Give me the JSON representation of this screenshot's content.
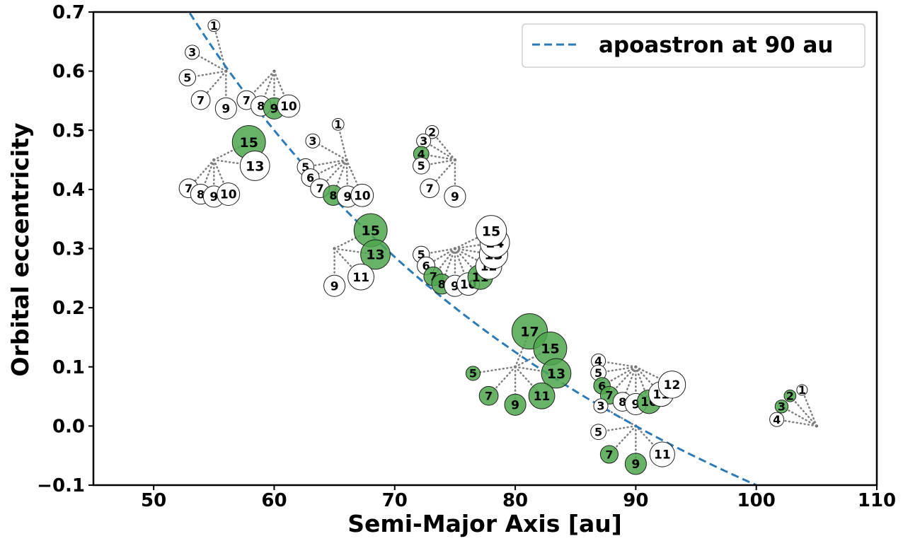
{
  "chart_data": {
    "type": "scatter",
    "xlabel": "Semi-Major Axis [au]",
    "ylabel": "Orbital eccentricity",
    "xlim": [
      45,
      110
    ],
    "ylim": [
      -0.1,
      0.7
    ],
    "xticks": [
      "50",
      "60",
      "70",
      "80",
      "90",
      "100",
      "110"
    ],
    "yticks": [
      "−0.1",
      "0.0",
      "0.1",
      "0.2",
      "0.3",
      "0.4",
      "0.5",
      "0.6",
      "0.7"
    ],
    "grid": false,
    "legend": {
      "position": "top-right",
      "entries": [
        "apoastron at 90 au"
      ]
    },
    "curve": {
      "name": "apoastron at 90 au",
      "apoastron_au": 90,
      "x_range": [
        53,
        100
      ],
      "style": "dashed",
      "color": "#2c7bb6"
    },
    "colors": {
      "filled": "#4da64d",
      "filled_alpha": 0.85,
      "open": "#ffffff",
      "connector": "#808080"
    },
    "systems": [
      {
        "center": [
          56,
          0.6
        ],
        "points": [
          {
            "label": "1",
            "x": 55,
            "y": 0.677,
            "r": 0.01,
            "filled": false
          },
          {
            "label": "3",
            "x": 53.2,
            "y": 0.632,
            "r": 0.012,
            "filled": false
          },
          {
            "label": "5",
            "x": 52.8,
            "y": 0.589,
            "r": 0.014,
            "filled": false
          },
          {
            "label": "7",
            "x": 53.9,
            "y": 0.551,
            "r": 0.016,
            "filled": false
          },
          {
            "label": "9",
            "x": 56,
            "y": 0.537,
            "r": 0.018,
            "filled": false
          }
        ]
      },
      {
        "center": [
          60,
          0.6
        ],
        "points": [
          {
            "label": "7",
            "x": 57.7,
            "y": 0.551,
            "r": 0.016,
            "filled": false
          },
          {
            "label": "8",
            "x": 58.9,
            "y": 0.541,
            "r": 0.017,
            "filled": false
          },
          {
            "label": "9",
            "x": 60,
            "y": 0.537,
            "r": 0.018,
            "filled": true
          },
          {
            "label": "10",
            "x": 61.2,
            "y": 0.541,
            "r": 0.019,
            "filled": false
          }
        ]
      },
      {
        "center": [
          55,
          0.45
        ],
        "points": [
          {
            "label": "15",
            "x": 57.9,
            "y": 0.48,
            "r": 0.028,
            "filled": true
          },
          {
            "label": "13",
            "x": 58.4,
            "y": 0.44,
            "r": 0.025,
            "filled": false
          },
          {
            "label": "7",
            "x": 52.9,
            "y": 0.402,
            "r": 0.016,
            "filled": false
          },
          {
            "label": "8",
            "x": 53.9,
            "y": 0.392,
            "r": 0.017,
            "filled": false
          },
          {
            "label": "9",
            "x": 55,
            "y": 0.388,
            "r": 0.018,
            "filled": false
          },
          {
            "label": "10",
            "x": 56.2,
            "y": 0.392,
            "r": 0.019,
            "filled": false
          }
        ]
      },
      {
        "center": [
          66,
          0.45
        ],
        "points": [
          {
            "label": "1",
            "x": 65.3,
            "y": 0.51,
            "r": 0.01,
            "filled": false
          },
          {
            "label": "3",
            "x": 63.2,
            "y": 0.482,
            "r": 0.012,
            "filled": false
          },
          {
            "label": "5",
            "x": 62.6,
            "y": 0.438,
            "r": 0.014,
            "filled": false
          },
          {
            "label": "6",
            "x": 63,
            "y": 0.42,
            "r": 0.015,
            "filled": false
          },
          {
            "label": "7",
            "x": 63.8,
            "y": 0.402,
            "r": 0.016,
            "filled": false
          },
          {
            "label": "8",
            "x": 64.9,
            "y": 0.39,
            "r": 0.017,
            "filled": true
          },
          {
            "label": "9",
            "x": 66.1,
            "y": 0.388,
            "r": 0.018,
            "filled": false
          },
          {
            "label": "10",
            "x": 67.3,
            "y": 0.39,
            "r": 0.019,
            "filled": false
          }
        ]
      },
      {
        "center": [
          75,
          0.45
        ],
        "points": [
          {
            "label": "2",
            "x": 73.1,
            "y": 0.497,
            "r": 0.011,
            "filled": false
          },
          {
            "label": "3",
            "x": 72.4,
            "y": 0.482,
            "r": 0.012,
            "filled": false
          },
          {
            "label": "4",
            "x": 72.2,
            "y": 0.46,
            "r": 0.013,
            "filled": true
          },
          {
            "label": "5",
            "x": 72.2,
            "y": 0.44,
            "r": 0.014,
            "filled": false
          },
          {
            "label": "7",
            "x": 72.9,
            "y": 0.402,
            "r": 0.016,
            "filled": false
          },
          {
            "label": "9",
            "x": 75,
            "y": 0.388,
            "r": 0.018,
            "filled": false
          }
        ]
      },
      {
        "center": [
          65,
          0.3
        ],
        "points": [
          {
            "label": "15",
            "x": 68,
            "y": 0.331,
            "r": 0.028,
            "filled": true
          },
          {
            "label": "13",
            "x": 68.4,
            "y": 0.29,
            "r": 0.025,
            "filled": true
          },
          {
            "label": "11",
            "x": 67.2,
            "y": 0.252,
            "r": 0.022,
            "filled": false
          },
          {
            "label": "9",
            "x": 65,
            "y": 0.237,
            "r": 0.018,
            "filled": false
          }
        ]
      },
      {
        "center": [
          75,
          0.3
        ],
        "points": [
          {
            "label": "5",
            "x": 72.2,
            "y": 0.29,
            "r": 0.014,
            "filled": false
          },
          {
            "label": "6",
            "x": 72.6,
            "y": 0.271,
            "r": 0.015,
            "filled": false
          },
          {
            "label": "7",
            "x": 73.2,
            "y": 0.253,
            "r": 0.016,
            "filled": true
          },
          {
            "label": "8",
            "x": 73.9,
            "y": 0.24,
            "r": 0.017,
            "filled": true
          },
          {
            "label": "9",
            "x": 75,
            "y": 0.237,
            "r": 0.018,
            "filled": false
          },
          {
            "label": "10",
            "x": 76.1,
            "y": 0.24,
            "r": 0.019,
            "filled": false
          },
          {
            "label": "11",
            "x": 77.1,
            "y": 0.252,
            "r": 0.021,
            "filled": true
          },
          {
            "label": "12",
            "x": 77.8,
            "y": 0.27,
            "r": 0.022,
            "filled": false
          },
          {
            "label": "13",
            "x": 78.2,
            "y": 0.29,
            "r": 0.024,
            "filled": false
          },
          {
            "label": "14",
            "x": 78.3,
            "y": 0.31,
            "r": 0.025,
            "filled": false
          },
          {
            "label": "15",
            "x": 78,
            "y": 0.33,
            "r": 0.026,
            "filled": false
          }
        ]
      },
      {
        "center": [
          80,
          0.1
        ],
        "points": [
          {
            "label": "17",
            "x": 81.2,
            "y": 0.16,
            "r": 0.03,
            "filled": true
          },
          {
            "label": "15",
            "x": 82.9,
            "y": 0.131,
            "r": 0.028,
            "filled": true
          },
          {
            "label": "13",
            "x": 83.4,
            "y": 0.089,
            "r": 0.025,
            "filled": true
          },
          {
            "label": "11",
            "x": 82.2,
            "y": 0.051,
            "r": 0.022,
            "filled": true
          },
          {
            "label": "9",
            "x": 80,
            "y": 0.036,
            "r": 0.018,
            "filled": true
          },
          {
            "label": "7",
            "x": 77.8,
            "y": 0.051,
            "r": 0.016,
            "filled": true
          },
          {
            "label": "5",
            "x": 76.5,
            "y": 0.089,
            "r": 0.012,
            "filled": true
          }
        ]
      },
      {
        "center": [
          90,
          0.1
        ],
        "points": [
          {
            "label": "4",
            "x": 86.9,
            "y": 0.11,
            "r": 0.012,
            "filled": false
          },
          {
            "label": "5",
            "x": 86.9,
            "y": 0.09,
            "r": 0.013,
            "filled": false
          },
          {
            "label": "6",
            "x": 87.2,
            "y": 0.068,
            "r": 0.014,
            "filled": true
          },
          {
            "label": "7",
            "x": 87.8,
            "y": 0.052,
            "r": 0.015,
            "filled": true
          },
          {
            "label": "8",
            "x": 88.9,
            "y": 0.041,
            "r": 0.016,
            "filled": false
          },
          {
            "label": "9",
            "x": 90,
            "y": 0.037,
            "r": 0.018,
            "filled": false
          },
          {
            "label": "10",
            "x": 91.1,
            "y": 0.041,
            "r": 0.02,
            "filled": true
          },
          {
            "label": "11",
            "x": 92.1,
            "y": 0.054,
            "r": 0.021,
            "filled": false
          },
          {
            "label": "12",
            "x": 93,
            "y": 0.07,
            "r": 0.023,
            "filled": false
          }
        ]
      },
      {
        "center": [
          90,
          0.0
        ],
        "points": [
          {
            "label": "3",
            "x": 87.1,
            "y": 0.034,
            "r": 0.012,
            "filled": false
          },
          {
            "label": "5",
            "x": 86.9,
            "y": -0.01,
            "r": 0.013,
            "filled": false
          },
          {
            "label": "7",
            "x": 87.8,
            "y": -0.048,
            "r": 0.015,
            "filled": true
          },
          {
            "label": "9",
            "x": 90,
            "y": -0.064,
            "r": 0.018,
            "filled": true
          },
          {
            "label": "11",
            "x": 92.2,
            "y": -0.048,
            "r": 0.021,
            "filled": false
          }
        ]
      },
      {
        "center": [
          105,
          0.0
        ],
        "points": [
          {
            "label": "1",
            "x": 103.8,
            "y": 0.061,
            "r": 0.009,
            "filled": false
          },
          {
            "label": "2",
            "x": 102.8,
            "y": 0.051,
            "r": 0.01,
            "filled": true
          },
          {
            "label": "3",
            "x": 102.1,
            "y": 0.033,
            "r": 0.011,
            "filled": true
          },
          {
            "label": "4",
            "x": 101.7,
            "y": 0.011,
            "r": 0.012,
            "filled": false
          }
        ]
      }
    ]
  }
}
